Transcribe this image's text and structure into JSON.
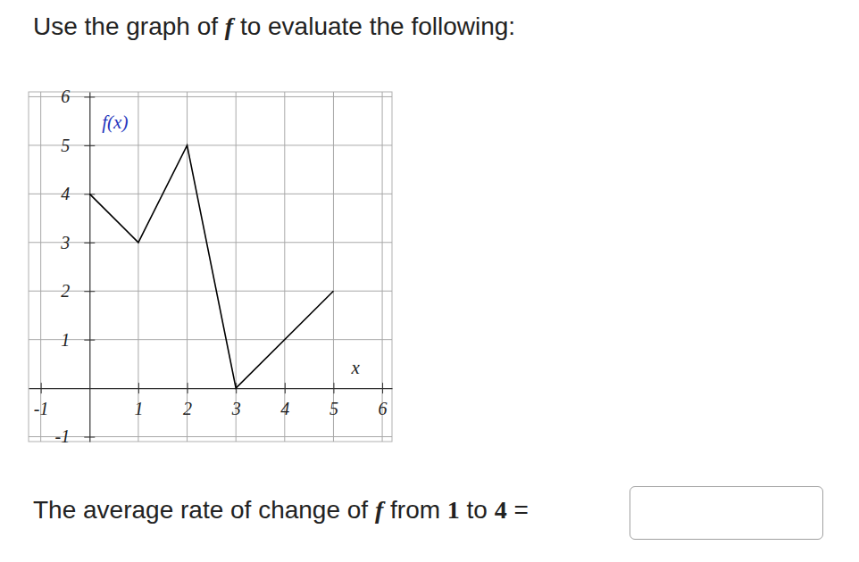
{
  "prompt": [
    "Use the graph of ",
    "f",
    " to evaluate the following:"
  ],
  "chart_data": {
    "type": "line",
    "x_label": "x",
    "y_label": "f(x)",
    "x": [
      0,
      1,
      2,
      3,
      5
    ],
    "values": [
      4,
      3,
      5,
      0,
      2
    ],
    "color": "#000000",
    "xlim": [
      -1.25,
      6.2
    ],
    "ylim": [
      -1.1,
      6.1
    ],
    "xticks": [
      -1,
      1,
      2,
      3,
      4,
      5,
      6
    ],
    "yticks": [
      -1,
      1,
      2,
      3,
      4,
      5,
      6
    ],
    "grid": true
  },
  "question": [
    "The average rate of change of ",
    "f",
    " from ",
    "1",
    " to ",
    "4",
    " ="
  ]
}
